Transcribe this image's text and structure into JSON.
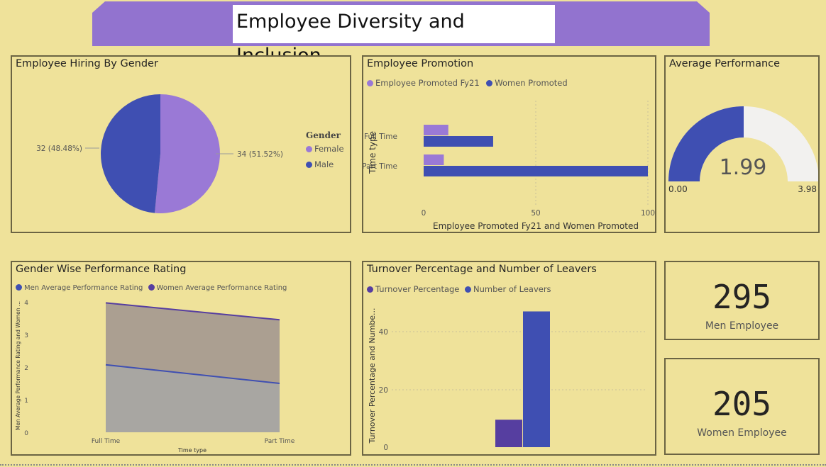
{
  "header": {
    "title": "Employee Diversity and Inclusion"
  },
  "colors": {
    "background": "#efe29a",
    "banner": "#9273cf",
    "female": "#9a79d6",
    "male": "#3f4fb2",
    "women": "#563ea0",
    "gauge_bg": "#f2f1ef"
  },
  "hiring": {
    "title": "Employee Hiring By Gender",
    "legend_title": "Gender",
    "legend": [
      "Female",
      "Male"
    ],
    "female_label": "34 (51.52%)",
    "male_label": "32 (48.48%)",
    "chart_data": {
      "type": "pie",
      "categories": [
        "Female",
        "Male"
      ],
      "values": [
        34,
        32
      ]
    }
  },
  "promotion": {
    "title": "Employee Promotion",
    "legend": [
      "Employee Promoted Fy21",
      "Women Promoted"
    ],
    "ylabel": "Time type",
    "xlabel": "Employee Promoted Fy21 and Women Promoted",
    "xticks": [
      "0",
      "50",
      "100"
    ],
    "categories": [
      "Full Time",
      "Part Time"
    ],
    "chart_data": {
      "type": "bar",
      "categories": [
        "Full Time",
        "Part Time"
      ],
      "series": [
        {
          "name": "Employee Promoted Fy21",
          "values": [
            11,
            9
          ]
        },
        {
          "name": "Women Promoted",
          "values": [
            31,
            100
          ]
        }
      ],
      "xlim": [
        0,
        100
      ]
    }
  },
  "avg_perf": {
    "title": "Average Performance",
    "value_label": "1.99",
    "min_label": "0.00",
    "max_label": "3.98",
    "value": 1.99,
    "min": 0,
    "max": 3.98
  },
  "gender_perf": {
    "title": "Gender Wise Performance Rating",
    "legend": [
      "Men Average Performance Rating",
      "Women Average Performance Rating"
    ],
    "ylabel": "Men Average Performance Rating and Women ...",
    "xlabel": "Time type",
    "yticks": [
      "0",
      "1",
      "2",
      "3",
      "4"
    ],
    "categories": [
      "Full Time",
      "Part Time"
    ],
    "chart_data": {
      "type": "area",
      "categories": [
        "Full Time",
        "Part Time"
      ],
      "series": [
        {
          "name": "Men Average Performance Rating",
          "values": [
            2.07,
            1.5
          ]
        },
        {
          "name": "Women Average Performance Rating",
          "values": [
            3.97,
            3.45
          ]
        }
      ],
      "ylim": [
        0,
        4
      ]
    }
  },
  "turnover": {
    "title": "Turnover Percentage and Number of Leavers",
    "legend": [
      "Turnover Percentage",
      "Number of Leavers"
    ],
    "ylabel": "Turnover Percentage and Numbe...",
    "yticks": [
      "0",
      "20",
      "40"
    ],
    "chart_data": {
      "type": "bar",
      "series": [
        {
          "name": "Turnover Percentage",
          "values": [
            9.5
          ]
        },
        {
          "name": "Number of Leavers",
          "values": [
            47
          ]
        }
      ],
      "ylim": [
        0,
        48
      ]
    }
  },
  "men_card": {
    "value": "295",
    "label": "Men Employee"
  },
  "women_card": {
    "value": "205",
    "label": "Women Employee"
  }
}
